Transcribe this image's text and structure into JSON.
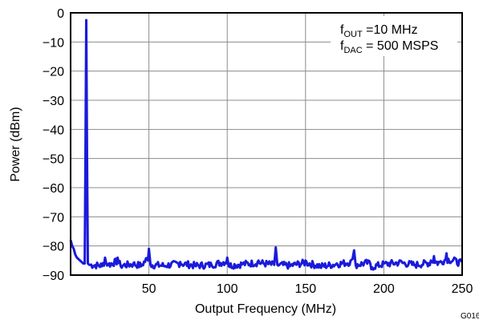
{
  "chart_data": {
    "type": "line",
    "xlabel": "Output Frequency (MHz)",
    "ylabel": "Power (dBm)",
    "xlim": [
      0,
      250
    ],
    "ylim": [
      -90,
      0
    ],
    "x_ticks": [
      50,
      100,
      150,
      200,
      250
    ],
    "y_ticks": [
      0,
      -10,
      -20,
      -30,
      -40,
      -50,
      -60,
      -70,
      -80,
      -90
    ],
    "x_tick_labels": [
      "50",
      "100",
      "150",
      "200",
      "250"
    ],
    "y_tick_labels": [
      "0",
      "−10",
      "−20",
      "−30",
      "−40",
      "−50",
      "−60",
      "−70",
      "−80",
      "−90"
    ],
    "grid": true,
    "line_color": "#1a1adb",
    "annotation_lines": [
      {
        "main": "f",
        "sub": "OUT",
        "rest": " =10 MHz"
      },
      {
        "main": "f",
        "sub": "DAC",
        "rest": " = 500 MSPS"
      }
    ],
    "figure_code": "G016",
    "series": [
      {
        "noise_floor_dbm": -86.5,
        "points": [
          [
            0,
            -78
          ],
          [
            1,
            -80
          ],
          [
            2,
            -81
          ],
          [
            3,
            -83
          ],
          [
            4,
            -84
          ],
          [
            5,
            -84.5
          ],
          [
            6,
            -85
          ],
          [
            7,
            -85.5
          ],
          [
            8,
            -86
          ],
          [
            9,
            -86
          ],
          [
            9.5,
            -50
          ],
          [
            10,
            -2.5
          ],
          [
            10.5,
            -50
          ],
          [
            11,
            -86
          ],
          [
            12,
            -86.5
          ],
          [
            20,
            -87
          ],
          [
            22,
            -84
          ],
          [
            24,
            -86.5
          ],
          [
            30,
            -84
          ],
          [
            32,
            -87
          ],
          [
            40,
            -86
          ],
          [
            45,
            -87
          ],
          [
            50,
            -81
          ],
          [
            51,
            -86.5
          ],
          [
            60,
            -87
          ],
          [
            70,
            -85.5
          ],
          [
            80,
            -87
          ],
          [
            90,
            -86.5
          ],
          [
            100,
            -84
          ],
          [
            101,
            -87
          ],
          [
            110,
            -86
          ],
          [
            120,
            -85
          ],
          [
            130,
            -86.5
          ],
          [
            131,
            -80.5
          ],
          [
            132,
            -86.5
          ],
          [
            140,
            -87
          ],
          [
            150,
            -85
          ],
          [
            160,
            -87.5
          ],
          [
            170,
            -86
          ],
          [
            180,
            -84.5
          ],
          [
            181,
            -81.5
          ],
          [
            182,
            -86.5
          ],
          [
            190,
            -85
          ],
          [
            192,
            -88
          ],
          [
            200,
            -86
          ],
          [
            210,
            -85
          ],
          [
            220,
            -86.5
          ],
          [
            230,
            -85
          ],
          [
            232,
            -83.5
          ],
          [
            235,
            -85.5
          ],
          [
            240,
            -82.5
          ],
          [
            245,
            -84
          ],
          [
            250,
            -85.5
          ]
        ]
      }
    ]
  }
}
